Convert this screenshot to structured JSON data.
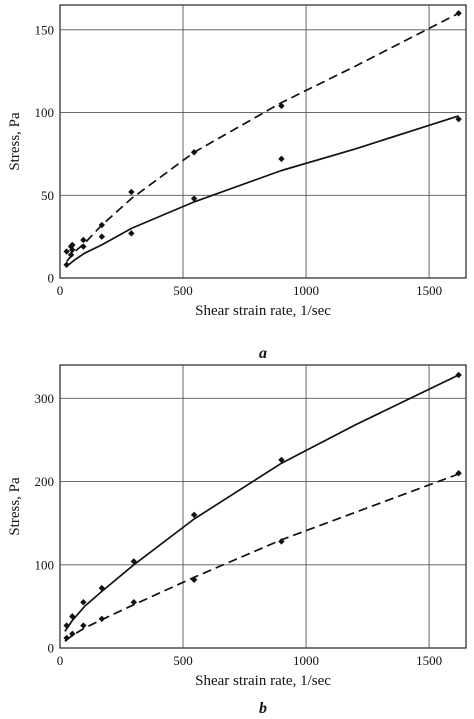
{
  "chart_data": [
    {
      "type": "line",
      "panel_label": "a",
      "xlabel": "Shear strain rate, 1/sec",
      "ylabel": "Stress, Pa",
      "xlim": [
        0,
        1650
      ],
      "ylim": [
        0,
        165
      ],
      "xticks": [
        0,
        500,
        1000,
        1500
      ],
      "yticks": [
        0,
        50,
        100,
        150
      ],
      "grid": true,
      "series": [
        {
          "style": "dashed",
          "points": [
            [
              27,
              16
            ],
            [
              45,
              19
            ],
            [
              50,
              20
            ],
            [
              95,
              23
            ],
            [
              170,
              32
            ],
            [
              290,
              52
            ],
            [
              545,
              76
            ],
            [
              900,
              104
            ],
            [
              1620,
              160
            ]
          ],
          "curve": [
            [
              27,
              10
            ],
            [
              60,
              16
            ],
            [
              100,
              21
            ],
            [
              170,
              32
            ],
            [
              290,
              48
            ],
            [
              545,
              76
            ],
            [
              900,
              106
            ],
            [
              1200,
              128
            ],
            [
              1620,
              160
            ]
          ]
        },
        {
          "style": "solid",
          "points": [
            [
              27,
              8
            ],
            [
              45,
              14
            ],
            [
              50,
              17
            ],
            [
              95,
              19
            ],
            [
              170,
              25
            ],
            [
              290,
              27
            ],
            [
              545,
              48
            ],
            [
              900,
              72
            ],
            [
              1620,
              96
            ]
          ],
          "curve": [
            [
              27,
              7
            ],
            [
              60,
              11
            ],
            [
              100,
              15
            ],
            [
              170,
              20
            ],
            [
              290,
              30
            ],
            [
              545,
              46
            ],
            [
              900,
              65
            ],
            [
              1200,
              78
            ],
            [
              1620,
              98
            ]
          ]
        }
      ]
    },
    {
      "type": "line",
      "panel_label": "b",
      "xlabel": "Shear strain rate, 1/sec",
      "ylabel": "Stress, Pa",
      "xlim": [
        0,
        1650
      ],
      "ylim": [
        0,
        340
      ],
      "xticks": [
        0,
        500,
        1000,
        1500
      ],
      "yticks": [
        0,
        100,
        200,
        300
      ],
      "grid": true,
      "series": [
        {
          "style": "solid",
          "points": [
            [
              27,
              27
            ],
            [
              50,
              38
            ],
            [
              95,
              55
            ],
            [
              170,
              72
            ],
            [
              300,
              104
            ],
            [
              545,
              160
            ],
            [
              900,
              226
            ],
            [
              1620,
              328
            ]
          ],
          "curve": [
            [
              20,
              20
            ],
            [
              50,
              33
            ],
            [
              100,
              50
            ],
            [
              170,
              68
            ],
            [
              300,
              100
            ],
            [
              545,
              155
            ],
            [
              900,
              222
            ],
            [
              1200,
              268
            ],
            [
              1620,
              328
            ]
          ]
        },
        {
          "style": "dashed",
          "points": [
            [
              27,
              12
            ],
            [
              50,
              17
            ],
            [
              95,
              27
            ],
            [
              170,
              35
            ],
            [
              300,
              55
            ],
            [
              545,
              82
            ],
            [
              900,
              128
            ],
            [
              1620,
              210
            ]
          ],
          "curve": [
            [
              20,
              8
            ],
            [
              50,
              15
            ],
            [
              100,
              24
            ],
            [
              170,
              34
            ],
            [
              300,
              52
            ],
            [
              545,
              85
            ],
            [
              900,
              130
            ],
            [
              1200,
              163
            ],
            [
              1620,
              209
            ]
          ]
        }
      ]
    }
  ]
}
